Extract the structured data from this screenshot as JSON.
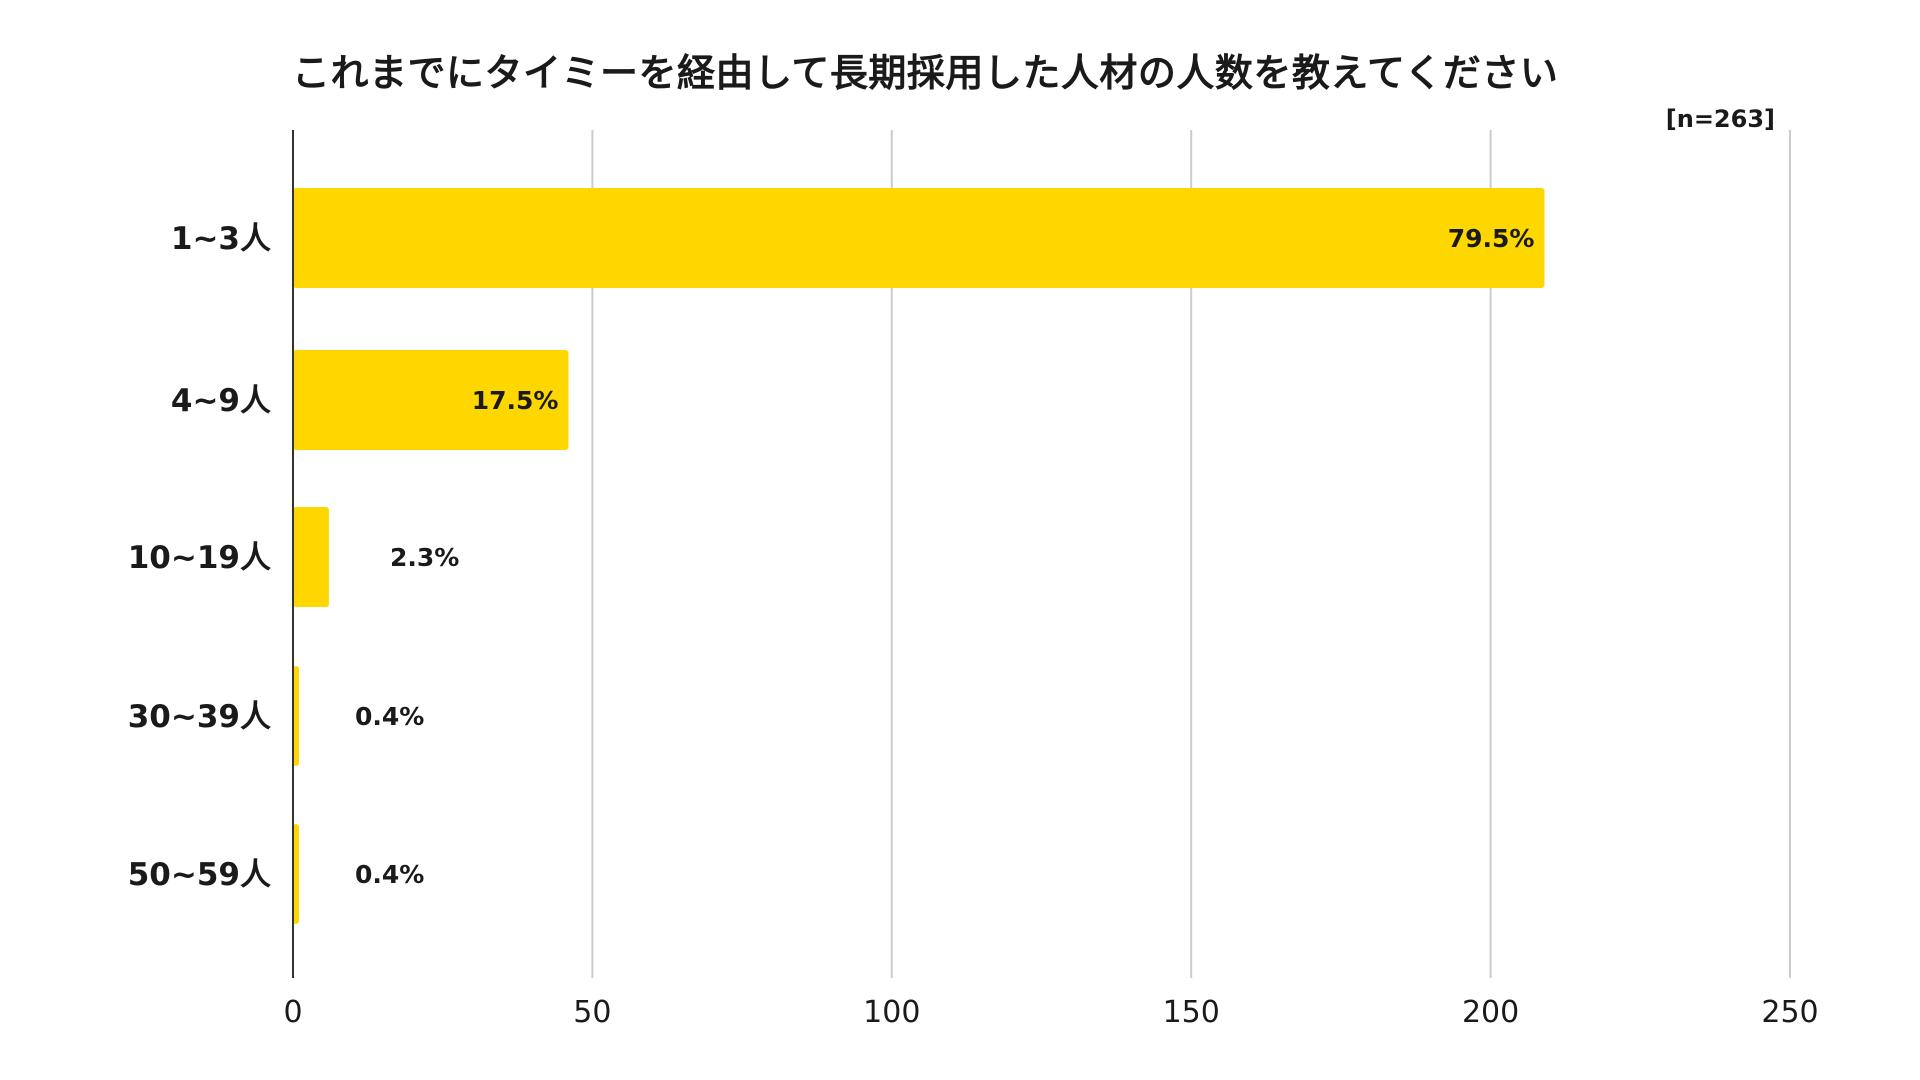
{
  "chart_data": {
    "type": "bar",
    "orientation": "horizontal",
    "title": "これまでにタイミーを経由して長期採用した人材の人数を教えてください",
    "note": "[n=263]",
    "categories": [
      "1~3人",
      "4~9人",
      "10~19人",
      "30~39人",
      "50~59人"
    ],
    "values": [
      209,
      46,
      6,
      1,
      1
    ],
    "data_labels": [
      "79.5%",
      "17.5%",
      "2.3%",
      "0.4%",
      "0.4%"
    ],
    "xlim": [
      0,
      250
    ],
    "xticks": [
      0,
      50,
      100,
      150,
      200,
      250
    ],
    "xtick_labels": [
      "0",
      "50",
      "100",
      "150",
      "200",
      "250"
    ],
    "grid": true,
    "legend": "none",
    "colors": {
      "bar": "#FFD700",
      "grid": "#cccccc",
      "axis": "#333333",
      "text": "#1a1a1a"
    }
  }
}
